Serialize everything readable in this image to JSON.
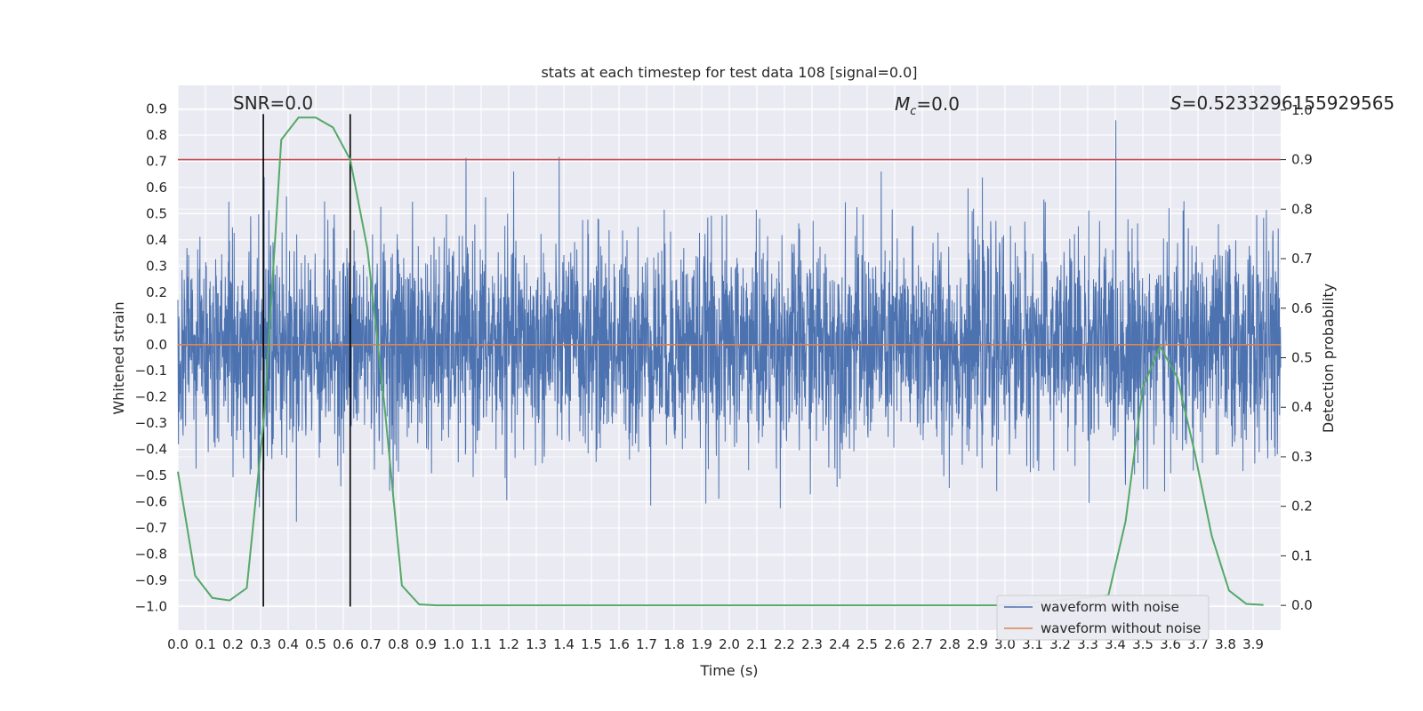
{
  "chart_data": {
    "type": "line",
    "title": "stats at each timestep for test data 108 [signal=0.0]",
    "xlabel": "Time (s)",
    "ylabel": "Whitened strain",
    "y2label": "Detection probability",
    "xlim": [
      0.0,
      4.0
    ],
    "ylim": [
      -1.09,
      0.99
    ],
    "y2lim": [
      -0.05,
      1.05
    ],
    "x_ticks": [
      "0.0",
      "0.1",
      "0.2",
      "0.3",
      "0.4",
      "0.5",
      "0.6",
      "0.7",
      "0.8",
      "0.9",
      "1.0",
      "1.1",
      "1.2",
      "1.3",
      "1.4",
      "1.5",
      "1.6",
      "1.7",
      "1.8",
      "1.9",
      "2.0",
      "2.1",
      "2.2",
      "2.3",
      "2.4",
      "2.5",
      "2.6",
      "2.7",
      "2.8",
      "2.9",
      "3.0",
      "3.1",
      "3.2",
      "3.3",
      "3.4",
      "3.5",
      "3.6",
      "3.7",
      "3.8",
      "3.9"
    ],
    "y_ticks": [
      "0.9",
      "0.8",
      "0.7",
      "0.6",
      "0.5",
      "0.4",
      "0.3",
      "0.2",
      "0.1",
      "0.0",
      "−0.1",
      "−0.2",
      "−0.3",
      "−0.4",
      "−0.5",
      "−0.6",
      "−0.7",
      "−0.8",
      "−0.9",
      "−1.0"
    ],
    "y2_ticks": [
      "1.0",
      "0.9",
      "0.8",
      "0.7",
      "0.6",
      "0.5",
      "0.4",
      "0.3",
      "0.2",
      "0.1",
      "0.0"
    ],
    "grid": true,
    "legend_position": "lower-right",
    "annotations": {
      "snr": "SNR=0.0",
      "mc_symbol": "M",
      "mc_subscript": "c",
      "mc_value": "=0.0",
      "s_symbol": "S",
      "s_value": "=0.5233296155929565"
    },
    "threshold": 0.9,
    "vlines": [
      0.31,
      0.625
    ],
    "series": [
      {
        "name": "waveform with noise",
        "color": "#4c72b0",
        "style": "noise",
        "amplitude_range": [
          -1.0,
          0.88
        ]
      },
      {
        "name": "waveform without noise",
        "color": "#dd8452",
        "values_constant": 0.0
      },
      {
        "color": "#55a868",
        "axis": "right",
        "x": [
          0.0,
          0.0625,
          0.125,
          0.1875,
          0.25,
          0.3125,
          0.375,
          0.4375,
          0.5,
          0.5625,
          0.625,
          0.6875,
          0.75,
          0.8125,
          0.875,
          0.9375,
          1.0,
          1.5,
          2.0,
          2.5,
          3.0,
          3.375,
          3.4375,
          3.5,
          3.5625,
          3.625,
          3.6875,
          3.75,
          3.8125,
          3.875,
          3.9375
        ],
        "values": [
          0.27,
          0.06,
          0.015,
          0.01,
          0.035,
          0.38,
          0.94,
          0.985,
          0.985,
          0.965,
          0.9,
          0.72,
          0.4,
          0.04,
          0.002,
          0.0,
          0.0,
          0.0,
          0.0,
          0.0,
          0.0,
          0.02,
          0.17,
          0.44,
          0.523,
          0.46,
          0.31,
          0.14,
          0.03,
          0.003,
          0.001
        ]
      }
    ],
    "colors": {
      "background": "#eaeaf2",
      "grid": "#ffffff",
      "threshold": "#c44e52",
      "vline": "#000000"
    }
  }
}
